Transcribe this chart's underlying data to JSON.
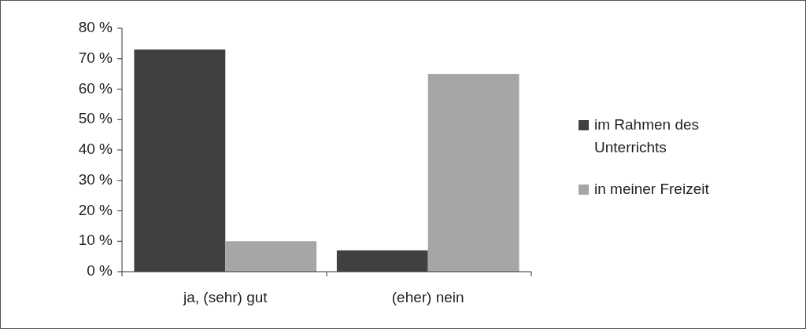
{
  "chart_data": {
    "type": "bar",
    "categories": [
      "ja, (sehr) gut",
      "(eher) nein"
    ],
    "series": [
      {
        "name": "im Rahmen des Unterrichts",
        "color": "#404040",
        "values": [
          73,
          7
        ]
      },
      {
        "name": "in meiner Freizeit",
        "color": "#a6a6a6",
        "values": [
          10,
          65
        ]
      }
    ],
    "ylim": [
      0,
      80
    ],
    "yticks": [
      {
        "value": 0,
        "label": "0 %"
      },
      {
        "value": 10,
        "label": "10 %"
      },
      {
        "value": 20,
        "label": "20 %"
      },
      {
        "value": 30,
        "label": "30 %"
      },
      {
        "value": 40,
        "label": "40 %"
      },
      {
        "value": 50,
        "label": "50 %"
      },
      {
        "value": 60,
        "label": "60 %"
      },
      {
        "value": 70,
        "label": "70 %"
      },
      {
        "value": 80,
        "label": "80 %"
      }
    ],
    "grid": false,
    "legend": "right"
  }
}
